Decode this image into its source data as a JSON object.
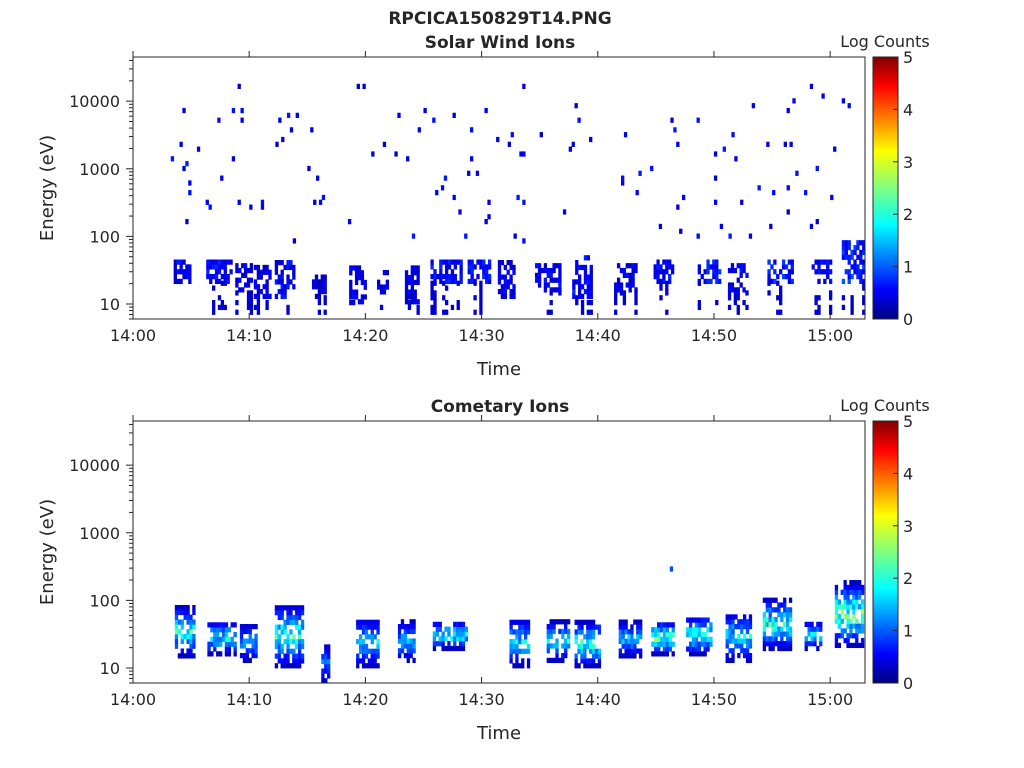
{
  "figure_title": "RPCICA150829T14.PNG",
  "colorbar_label": "Log Counts",
  "colormap": [
    "#000080",
    "#0000ff",
    "#00ffff",
    "#ffff00",
    "#ff0000",
    "#800000"
  ],
  "chart_data": [
    {
      "type": "heatmap",
      "title": "Solar Wind Ions",
      "xlabel": "Time",
      "ylabel": "Energy (eV)",
      "x_ticks": [
        "14:00",
        "14:10",
        "14:20",
        "14:30",
        "14:40",
        "14:50",
        "15:00"
      ],
      "xlim_minutes": [
        0,
        63
      ],
      "y_scale": "log",
      "ylim": [
        6,
        45000
      ],
      "y_ticks": [
        {
          "value": 10,
          "label": "10"
        },
        {
          "value": 100,
          "label": "100"
        },
        {
          "value": 1000,
          "label": "1000"
        },
        {
          "value": 10000,
          "label": "10000"
        }
      ],
      "colorbar": {
        "label": "Log Counts",
        "range": [
          0,
          5
        ],
        "ticks": [
          "0",
          "1",
          "2",
          "3",
          "4",
          "5"
        ]
      },
      "low_energy_bursts": [
        {
          "t": 3.5,
          "w": 1.4,
          "emin": 20,
          "emax": 45,
          "level": 0.55
        },
        {
          "t": 6.3,
          "w": 2.2,
          "emin": 20,
          "emax": 45,
          "level": 0.6
        },
        {
          "t": 8.8,
          "w": 1.5,
          "emin": 15,
          "emax": 35,
          "level": 0.5
        },
        {
          "t": 10.4,
          "w": 1.4,
          "emin": 12,
          "emax": 35,
          "level": 0.45
        },
        {
          "t": 12.2,
          "w": 1.6,
          "emin": 12,
          "emax": 40,
          "level": 0.55
        },
        {
          "t": 15.4,
          "w": 1.2,
          "emin": 12,
          "emax": 25,
          "level": 0.4
        },
        {
          "t": 18.6,
          "w": 1.4,
          "emin": 10,
          "emax": 35,
          "level": 0.5
        },
        {
          "t": 21.0,
          "w": 0.8,
          "emin": 14,
          "emax": 30,
          "level": 0.45
        },
        {
          "t": 23.4,
          "w": 1.2,
          "emin": 10,
          "emax": 35,
          "level": 0.45
        },
        {
          "t": 25.6,
          "w": 2.6,
          "emin": 20,
          "emax": 45,
          "level": 0.6
        },
        {
          "t": 28.8,
          "w": 1.8,
          "emin": 20,
          "emax": 45,
          "level": 0.6
        },
        {
          "t": 31.4,
          "w": 1.5,
          "emin": 12,
          "emax": 40,
          "level": 0.5
        },
        {
          "t": 34.6,
          "w": 2.2,
          "emin": 15,
          "emax": 40,
          "level": 0.55
        },
        {
          "t": 37.8,
          "w": 1.6,
          "emin": 12,
          "emax": 45,
          "level": 0.6
        },
        {
          "t": 41.4,
          "w": 1.8,
          "emin": 15,
          "emax": 40,
          "level": 0.5
        },
        {
          "t": 44.8,
          "w": 1.6,
          "emin": 20,
          "emax": 45,
          "level": 0.6
        },
        {
          "t": 48.6,
          "w": 1.8,
          "emin": 20,
          "emax": 45,
          "level": 0.7
        },
        {
          "t": 51.2,
          "w": 1.6,
          "emin": 15,
          "emax": 40,
          "level": 0.55
        },
        {
          "t": 54.6,
          "w": 2.2,
          "emin": 20,
          "emax": 45,
          "level": 0.7
        },
        {
          "t": 58.4,
          "w": 1.6,
          "emin": 20,
          "emax": 40,
          "level": 0.6
        },
        {
          "t": 61.0,
          "w": 2.0,
          "emin": 20,
          "emax": 75,
          "level": 0.75
        }
      ]
    },
    {
      "type": "heatmap",
      "title": "Cometary Ions",
      "xlabel": "Time",
      "ylabel": "Energy (eV)",
      "x_ticks": [
        "14:00",
        "14:10",
        "14:20",
        "14:30",
        "14:40",
        "14:50",
        "15:00"
      ],
      "xlim_minutes": [
        0,
        63
      ],
      "y_scale": "log",
      "ylim": [
        6,
        45000
      ],
      "y_ticks": [
        {
          "value": 10,
          "label": "10"
        },
        {
          "value": 100,
          "label": "100"
        },
        {
          "value": 1000,
          "label": "1000"
        },
        {
          "value": 10000,
          "label": "10000"
        }
      ],
      "colorbar": {
        "label": "Log Counts",
        "range": [
          0,
          5
        ],
        "ticks": [
          "0",
          "1",
          "2",
          "3",
          "4",
          "5"
        ]
      },
      "bursts": [
        {
          "t": 3.6,
          "w": 1.6,
          "emin": 14,
          "emax": 75,
          "peak": 1.9
        },
        {
          "t": 6.4,
          "w": 2.4,
          "emin": 15,
          "emax": 45,
          "peak": 1.8
        },
        {
          "t": 9.2,
          "w": 1.4,
          "emin": 12,
          "emax": 40,
          "peak": 1.3
        },
        {
          "t": 12.2,
          "w": 2.4,
          "emin": 10,
          "emax": 80,
          "peak": 2.0
        },
        {
          "t": 16.2,
          "w": 0.7,
          "emin": 6,
          "emax": 20,
          "peak": 1.0
        },
        {
          "t": 19.2,
          "w": 2.0,
          "emin": 10,
          "emax": 50,
          "peak": 1.5
        },
        {
          "t": 22.8,
          "w": 1.5,
          "emin": 12,
          "emax": 45,
          "peak": 1.3
        },
        {
          "t": 25.8,
          "w": 3.0,
          "emin": 18,
          "emax": 45,
          "peak": 1.9
        },
        {
          "t": 32.4,
          "w": 1.6,
          "emin": 10,
          "emax": 50,
          "peak": 1.6
        },
        {
          "t": 35.6,
          "w": 2.0,
          "emin": 12,
          "emax": 45,
          "peak": 1.7
        },
        {
          "t": 38.0,
          "w": 2.2,
          "emin": 10,
          "emax": 45,
          "peak": 2.0
        },
        {
          "t": 41.8,
          "w": 2.0,
          "emin": 14,
          "emax": 45,
          "peak": 1.5
        },
        {
          "t": 44.6,
          "w": 2.0,
          "emin": 15,
          "emax": 45,
          "peak": 2.3
        },
        {
          "t": 47.6,
          "w": 2.2,
          "emin": 15,
          "emax": 55,
          "peak": 2.0
        },
        {
          "t": 51.0,
          "w": 2.2,
          "emin": 12,
          "emax": 60,
          "peak": 1.7
        },
        {
          "t": 54.2,
          "w": 2.4,
          "emin": 18,
          "emax": 95,
          "peak": 2.1
        },
        {
          "t": 57.8,
          "w": 1.4,
          "emin": 18,
          "emax": 45,
          "peak": 1.6
        },
        {
          "t": 60.4,
          "w": 2.4,
          "emin": 20,
          "emax": 170,
          "peak": 2.3
        }
      ],
      "isolated_points": [
        {
          "t": 46.2,
          "energy": 270,
          "level": 1.0
        }
      ]
    }
  ]
}
